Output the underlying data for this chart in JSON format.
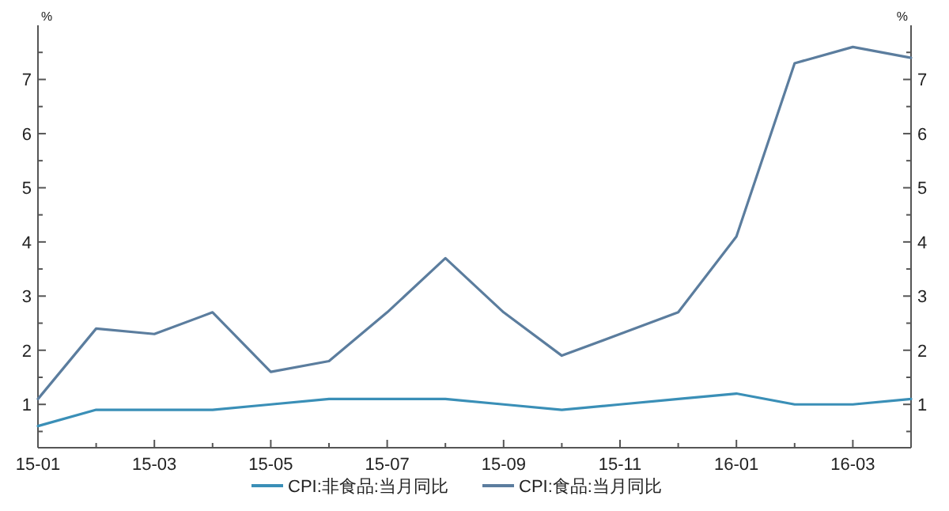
{
  "chart_data": {
    "type": "line",
    "ylabel": "%",
    "y2label": "%",
    "categories": [
      "15-01",
      null,
      "15-03",
      null,
      "15-05",
      null,
      "15-07",
      null,
      "15-09",
      null,
      "15-11",
      null,
      "16-01",
      null,
      "16-03",
      null
    ],
    "series": [
      {
        "name": "CPI:非食品:当月同比",
        "color": "#3a8fb7",
        "values": [
          0.6,
          0.9,
          0.9,
          0.9,
          1.0,
          1.1,
          1.1,
          1.1,
          1.0,
          0.9,
          1.0,
          1.1,
          1.2,
          1.0,
          1.0,
          1.1
        ]
      },
      {
        "name": "CPI:食品:当月同比",
        "color": "#5b7d9e",
        "values": [
          1.1,
          2.4,
          2.3,
          2.7,
          1.6,
          1.8,
          2.7,
          3.7,
          2.7,
          1.9,
          2.3,
          2.7,
          4.1,
          7.3,
          7.6,
          7.4
        ]
      }
    ],
    "ylim": [
      0.2,
      8.0
    ],
    "yticks": [
      {
        "value": 0.5,
        "label": null
      },
      1,
      {
        "value": 1.5,
        "label": null
      },
      2,
      {
        "value": 2.5,
        "label": null
      },
      3,
      {
        "value": 3.5,
        "label": null
      },
      4,
      {
        "value": 4.5,
        "label": null
      },
      5,
      {
        "value": 5.5,
        "label": null
      },
      6,
      {
        "value": 6.5,
        "label": null
      },
      7,
      {
        "value": 7.5,
        "label": null
      }
    ],
    "y2lim": [
      0.2,
      8.0
    ],
    "y2ticks": [
      {
        "value": 0.5,
        "label": null
      },
      1,
      {
        "value": 1.5,
        "label": null
      },
      2,
      {
        "value": 2.5,
        "label": null
      },
      3,
      {
        "value": 3.5,
        "label": null
      },
      4,
      {
        "value": 4.5,
        "label": null
      },
      5,
      {
        "value": 5.5,
        "label": null
      },
      6,
      {
        "value": 6.5,
        "label": null
      },
      7,
      {
        "value": 7.5,
        "label": null
      }
    ],
    "grid": false,
    "legend": "bottom",
    "marker": "none",
    "line_style": "solid"
  }
}
